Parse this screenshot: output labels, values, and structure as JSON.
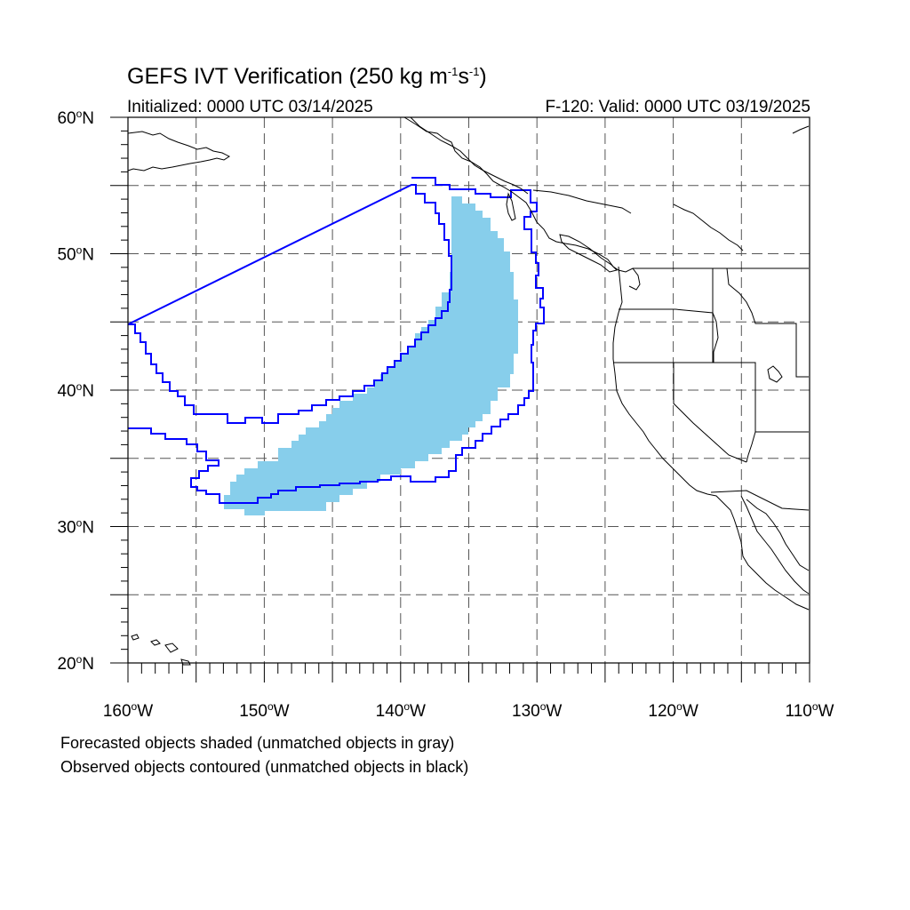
{
  "title": {
    "main": "GEFS IVT Verification (250 kg m",
    "exp1": "-1",
    "mid": "s",
    "exp2": "-1",
    "end": ")"
  },
  "initialized_text": "Initialized: 0000 UTC 03/14/2025",
  "valid_text": "F-120: Valid: 0000 UTC 03/19/2025",
  "notes": {
    "line1": "Forecasted objects shaded (unmatched objects in gray)",
    "line2": "Observed objects contoured (unmatched objects in black)"
  },
  "map": {
    "lon_range": [
      -160,
      -110
    ],
    "lat_range": [
      20,
      60
    ],
    "grid_lines": "dashed",
    "lat_ticks": [
      {
        "value": 60,
        "num": "60",
        "hemi": "N"
      },
      {
        "value": 50,
        "num": "50",
        "hemi": "N"
      },
      {
        "value": 40,
        "num": "40",
        "hemi": "N"
      },
      {
        "value": 30,
        "num": "30",
        "hemi": "N"
      },
      {
        "value": 20,
        "num": "20",
        "hemi": "N"
      }
    ],
    "lon_ticks": [
      {
        "value": -160,
        "num": "160",
        "hemi": "W"
      },
      {
        "value": -150,
        "num": "150",
        "hemi": "W"
      },
      {
        "value": -140,
        "num": "140",
        "hemi": "W"
      },
      {
        "value": -130,
        "num": "130",
        "hemi": "W"
      },
      {
        "value": -120,
        "num": "120",
        "hemi": "W"
      },
      {
        "value": -110,
        "num": "110",
        "hemi": "W"
      }
    ],
    "colors": {
      "forecast_fill": "#87ceeb",
      "observed_contour": "#0000ff",
      "coastline": "#000000",
      "grid": "#555555"
    }
  }
}
